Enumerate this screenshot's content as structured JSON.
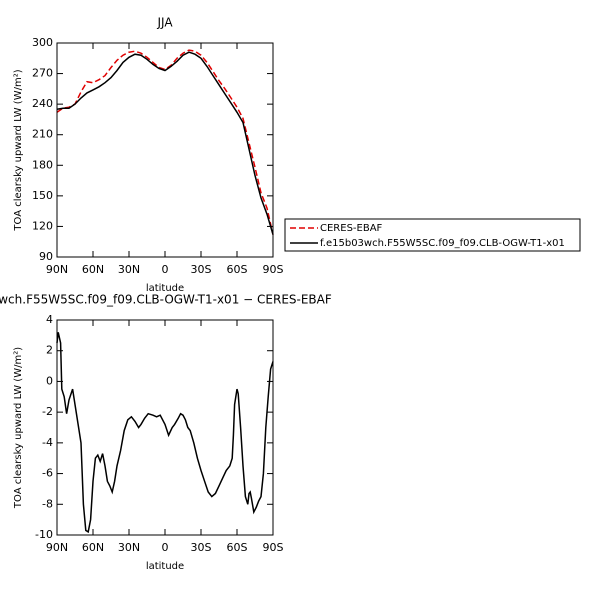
{
  "chart_data": [
    {
      "type": "line",
      "title": "JJA",
      "xlabel": "latitude",
      "ylabel": "TOA clearsky upward LW (W/m²)",
      "x": [
        90,
        85,
        80,
        75,
        70,
        65,
        60,
        55,
        50,
        45,
        40,
        35,
        30,
        25,
        20,
        15,
        10,
        5,
        0,
        -5,
        -10,
        -15,
        -20,
        -25,
        -30,
        -35,
        -40,
        -45,
        -50,
        -55,
        -60,
        -65,
        -70,
        -75,
        -80,
        -85,
        -90
      ],
      "series": [
        {
          "name": "CERES-EBAF",
          "color": "#e00000",
          "dashed": true,
          "values": [
            232,
            236,
            237,
            240,
            252,
            262,
            261,
            264,
            268,
            276,
            283,
            288,
            291,
            292,
            290,
            286,
            281,
            276,
            274,
            278,
            285,
            290,
            293,
            292,
            288,
            281,
            272,
            263,
            255,
            246,
            237,
            226,
            202,
            178,
            153,
            138,
            112
          ]
        },
        {
          "name": "f.e15b03wch.F55W5SC.f09_f09.CLB-OGW-T1-x01",
          "color": "#000000",
          "dashed": false,
          "values": [
            235,
            236,
            236,
            240,
            246,
            251,
            254,
            257,
            261,
            266,
            273,
            281,
            286,
            289,
            288,
            284,
            279,
            275,
            273,
            277,
            282,
            288,
            291,
            289,
            285,
            277,
            268,
            259,
            250,
            241,
            232,
            222,
            196,
            170,
            148,
            132,
            112
          ]
        }
      ],
      "xlim": [
        90,
        -90
      ],
      "xticks": [
        {
          "value": 90,
          "label": "90N"
        },
        {
          "value": 60,
          "label": "60N"
        },
        {
          "value": 30,
          "label": "30N"
        },
        0,
        {
          "value": -30,
          "label": "30S"
        },
        {
          "value": -60,
          "label": "60S"
        },
        {
          "value": -90,
          "label": "90S"
        }
      ],
      "ylim": [
        90,
        300
      ],
      "yticks": [
        90,
        120,
        150,
        180,
        210,
        240,
        270,
        300
      ],
      "legend": "right"
    },
    {
      "type": "line",
      "title": "wch.F55W5SC.f09_f09.CLB-OGW-T1-x01 − CERES-EBAF",
      "xlabel": "latitude",
      "ylabel": "TOA clearsky upward LW (W/m²)",
      "x": [
        90,
        89,
        87,
        86,
        84,
        82,
        80,
        77,
        75,
        72,
        70,
        68,
        66,
        64,
        62,
        60,
        58,
        56,
        54,
        52,
        50,
        48,
        46,
        44,
        42,
        40,
        37,
        34,
        31,
        28,
        25,
        22,
        20,
        17,
        14,
        10,
        7,
        4,
        0,
        -3,
        -6,
        -8,
        -11,
        -13,
        -15,
        -17,
        -19,
        -21,
        -24,
        -27,
        -30,
        -33,
        -36,
        -39,
        -42,
        -45,
        -48,
        -51,
        -54,
        -56,
        -57,
        -58,
        -60,
        -61,
        -63,
        -65,
        -67,
        -69,
        -70,
        -71,
        -72,
        -74,
        -76,
        -78,
        -80,
        -82,
        -84,
        -86,
        -88,
        -90
      ],
      "values": [
        2.5,
        3.2,
        2.5,
        -0.5,
        -1,
        -2.1,
        -1.2,
        -0.5,
        -1.5,
        -3,
        -4,
        -8,
        -9.7,
        -9.8,
        -9,
        -6.5,
        -5,
        -4.8,
        -5.2,
        -4.7,
        -5.5,
        -6.5,
        -6.8,
        -7.2,
        -6.5,
        -5.5,
        -4.5,
        -3.2,
        -2.5,
        -2.3,
        -2.6,
        -3,
        -2.8,
        -2.4,
        -2.1,
        -2.2,
        -2.3,
        -2.2,
        -2.8,
        -3.5,
        -3,
        -2.8,
        -2.4,
        -2.1,
        -2.2,
        -2.5,
        -3,
        -3.2,
        -4,
        -5,
        -5.8,
        -6.5,
        -7.2,
        -7.5,
        -7.3,
        -6.8,
        -6.3,
        -5.8,
        -5.5,
        -5,
        -3.5,
        -1.5,
        -0.5,
        -0.8,
        -3,
        -5.5,
        -7.5,
        -8,
        -7.3,
        -7.2,
        -7.6,
        -8.5,
        -8.2,
        -7.8,
        -7.5,
        -6,
        -3,
        -1,
        0.8,
        1.3
      ],
      "color": "#000000",
      "xlim": [
        90,
        -90
      ],
      "xticks": [
        {
          "value": 90,
          "label": "90N"
        },
        {
          "value": 60,
          "label": "60N"
        },
        {
          "value": 30,
          "label": "30N"
        },
        0,
        {
          "value": -30,
          "label": "30S"
        },
        {
          "value": -60,
          "label": "60S"
        },
        {
          "value": -90,
          "label": "90S"
        }
      ],
      "ylim": [
        -10,
        4
      ],
      "yticks": [
        -10,
        -8,
        -6,
        -4,
        -2,
        0,
        2,
        4
      ]
    }
  ]
}
